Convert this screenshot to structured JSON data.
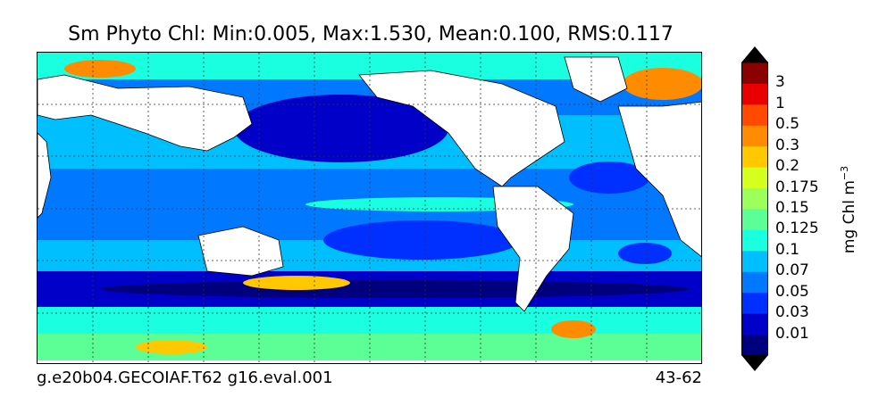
{
  "title": "Sm Phyto Chl: Min:0.005, Max:1.530, Mean:0.100, RMS:0.117",
  "footer": {
    "run": "g.e20b04.GECOIAF.T62 g16.eval.001",
    "years": "43-62"
  },
  "colorbar": {
    "label_text": "mg Chl m",
    "label_exp": "−3",
    "ticks": [
      "3",
      "1",
      "0.5",
      "0.3",
      "0.2",
      "0.175",
      "0.15",
      "0.125",
      "0.1",
      "0.07",
      "0.05",
      "0.03",
      "0.01"
    ],
    "colors": [
      "#00007f",
      "#0000c8",
      "#0030ff",
      "#0078ff",
      "#00bfff",
      "#19ffe0",
      "#5cff96",
      "#9dff59",
      "#d4ff1f",
      "#ffc800",
      "#ff8c00",
      "#ff4a00",
      "#e80000",
      "#8b0000"
    ],
    "top_arrow_color": "#000000",
    "bottom_arrow_color": "#000000"
  },
  "map": {
    "projection": "cylindrical",
    "longitude_center": "Pacific (~200E)",
    "land_color": "#ffffff",
    "grid": "dotted"
  }
}
